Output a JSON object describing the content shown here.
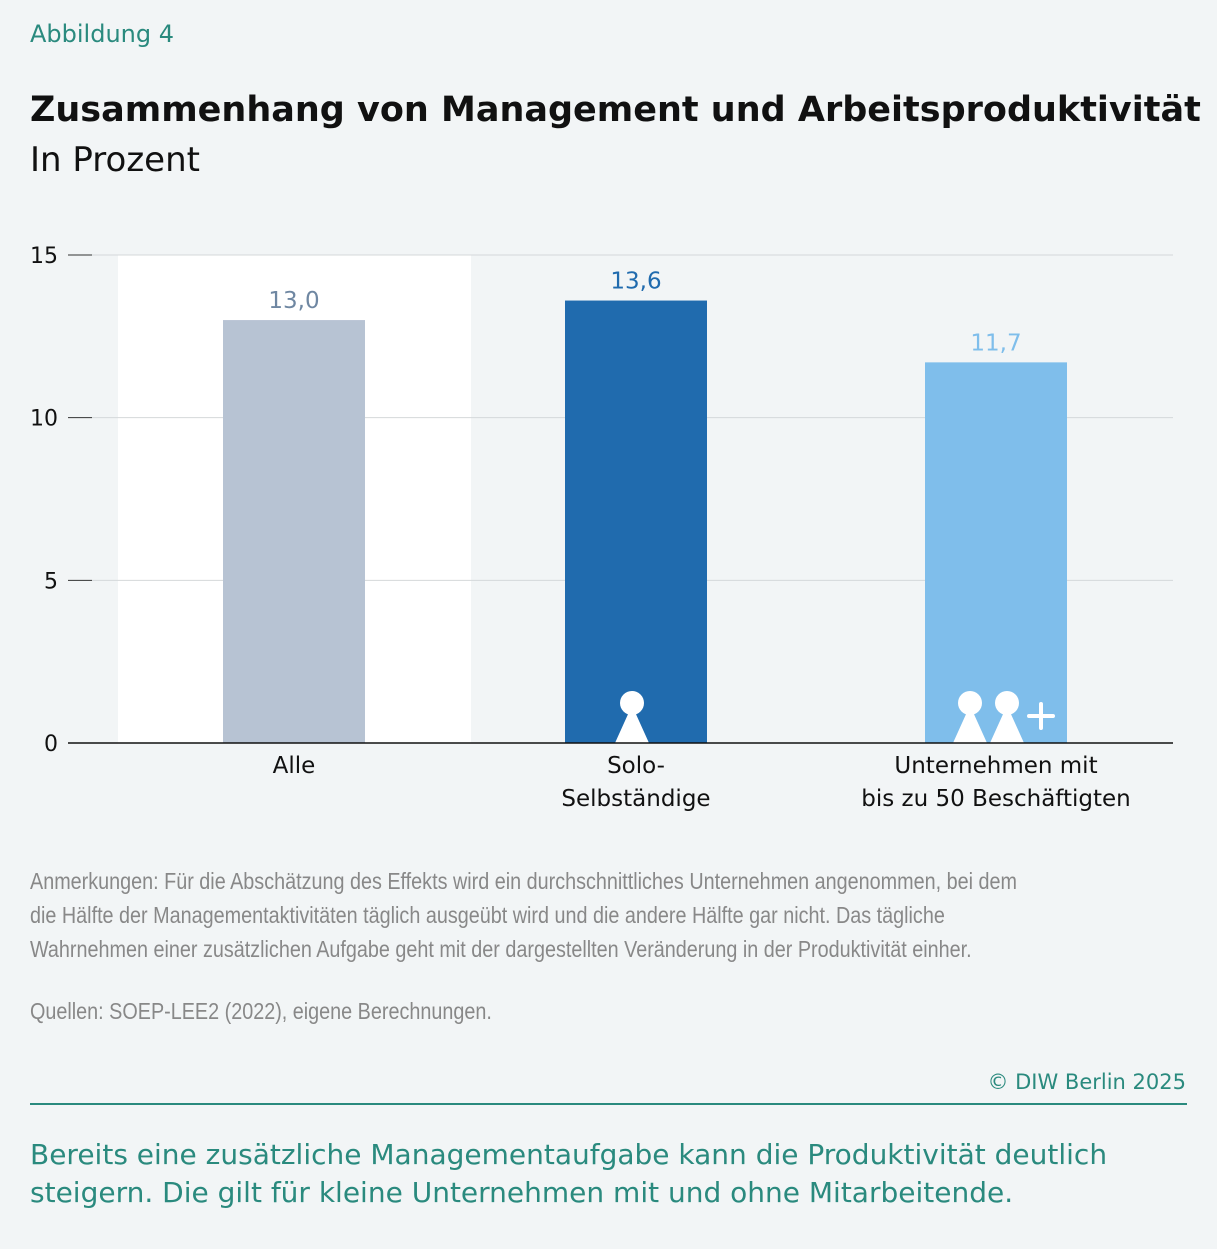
{
  "figure_label": "Abbildung 4",
  "title": "Zusammenhang von Management und Arbeitsproduktivität",
  "subtitle": "In Prozent",
  "chart_data": {
    "type": "bar",
    "categories": [
      [
        "Alle"
      ],
      [
        "Solo-",
        "Selbständige"
      ],
      [
        "Unternehmen mit",
        "bis zu 50 Beschäftigten"
      ]
    ],
    "values": [
      13.0,
      13.6,
      11.7
    ],
    "value_labels": [
      "13,0",
      "13,6",
      "11,7"
    ],
    "colors": [
      "#b7c3d3",
      "#206bae",
      "#7fbeeb"
    ],
    "label_colors": [
      "#6f87a2",
      "#206bae",
      "#7fbeeb"
    ],
    "icons": [
      "",
      "person-icon",
      "two-persons-plus-icon"
    ],
    "highlight_category": "Alle",
    "ylim": [
      0,
      15
    ],
    "yticks": [
      "0",
      "5",
      "10",
      "15"
    ],
    "grid": true,
    "xlabel": "",
    "ylabel": ""
  },
  "notes": "Anmerkungen: Für die Abschätzung des Effekts wird ein durchschnittliches Unternehmen angenommen, bei dem die Hälfte der Managementaktivitäten täglich ausgeübt wird und die andere Hälfte gar nicht. Das tägliche Wahrnehmen einer zusätzlichen Aufgabe geht mit der dargestellten Veränderung in der Produktivität einher.",
  "sources": "Quellen: SOEP-LEE2 (2022), eigene Berechnungen.",
  "copyright": "© DIW Berlin 2025",
  "takeaway": "Bereits eine zusätzliche Managementaufgabe kann die Produktivität deutlich steigern. Die gilt für kleine Unternehmen mit und ohne Mitarbeitende."
}
